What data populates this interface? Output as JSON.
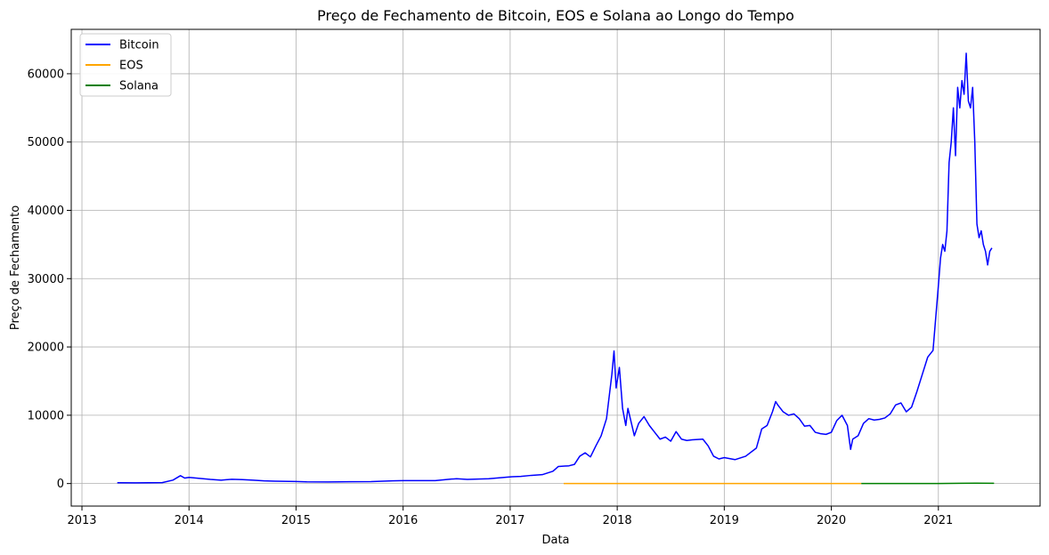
{
  "chart_data": {
    "type": "line",
    "title": "Preço de Fechamento de Bitcoin, EOS e Solana ao Longo do Tempo",
    "xlabel": "Data",
    "ylabel": "Preço de Fechamento",
    "xlim": [
      2012.9,
      2021.95
    ],
    "ylim": [
      -3300,
      66500
    ],
    "xticks": [
      2013,
      2014,
      2015,
      2016,
      2017,
      2018,
      2019,
      2020,
      2021
    ],
    "xtick_labels": [
      "2013",
      "2014",
      "2015",
      "2016",
      "2017",
      "2018",
      "2019",
      "2020",
      "2021"
    ],
    "yticks": [
      0,
      10000,
      20000,
      30000,
      40000,
      50000,
      60000
    ],
    "ytick_labels": [
      "0",
      "10000",
      "20000",
      "30000",
      "40000",
      "50000",
      "60000"
    ],
    "grid": true,
    "legend_position": "top-left",
    "series": [
      {
        "name": "Bitcoin",
        "color": "#0000ff",
        "x": [
          2013.33,
          2013.5,
          2013.75,
          2013.85,
          2013.92,
          2013.96,
          2014.0,
          2014.1,
          2014.2,
          2014.3,
          2014.4,
          2014.5,
          2014.6,
          2014.7,
          2014.8,
          2015.0,
          2015.1,
          2015.3,
          2015.5,
          2015.7,
          2015.9,
          2016.0,
          2016.3,
          2016.45,
          2016.5,
          2016.6,
          2016.8,
          2016.98,
          2017.02,
          2017.1,
          2017.2,
          2017.3,
          2017.4,
          2017.45,
          2017.55,
          2017.6,
          2017.65,
          2017.7,
          2017.75,
          2017.8,
          2017.85,
          2017.9,
          2017.95,
          2017.97,
          2017.99,
          2018.02,
          2018.05,
          2018.08,
          2018.1,
          2018.13,
          2018.16,
          2018.2,
          2018.25,
          2018.3,
          2018.35,
          2018.4,
          2018.45,
          2018.5,
          2018.55,
          2018.6,
          2018.65,
          2018.7,
          2018.8,
          2018.85,
          2018.9,
          2018.95,
          2019.0,
          2019.1,
          2019.2,
          2019.3,
          2019.35,
          2019.4,
          2019.45,
          2019.48,
          2019.5,
          2019.55,
          2019.6,
          2019.65,
          2019.7,
          2019.75,
          2019.8,
          2019.85,
          2019.9,
          2019.95,
          2020.0,
          2020.05,
          2020.1,
          2020.15,
          2020.18,
          2020.2,
          2020.25,
          2020.3,
          2020.35,
          2020.4,
          2020.45,
          2020.5,
          2020.55,
          2020.6,
          2020.65,
          2020.7,
          2020.75,
          2020.8,
          2020.85,
          2020.9,
          2020.95,
          2021.0,
          2021.02,
          2021.04,
          2021.06,
          2021.08,
          2021.1,
          2021.12,
          2021.14,
          2021.16,
          2021.18,
          2021.2,
          2021.22,
          2021.24,
          2021.26,
          2021.28,
          2021.3,
          2021.32,
          2021.34,
          2021.36,
          2021.38,
          2021.4,
          2021.42,
          2021.44,
          2021.46,
          2021.48,
          2021.5
        ],
        "values": [
          120,
          100,
          130,
          500,
          1150,
          800,
          900,
          750,
          600,
          500,
          620,
          580,
          500,
          400,
          350,
          300,
          250,
          240,
          260,
          280,
          400,
          430,
          420,
          650,
          700,
          610,
          700,
          950,
          1000,
          1050,
          1200,
          1300,
          1800,
          2500,
          2600,
          2800,
          4000,
          4500,
          3900,
          5500,
          7000,
          9500,
          16000,
          19400,
          14000,
          17000,
          11000,
          8500,
          11000,
          9000,
          7000,
          8800,
          9800,
          8500,
          7500,
          6500,
          6800,
          6200,
          7600,
          6500,
          6300,
          6400,
          6500,
          5500,
          4000,
          3600,
          3800,
          3500,
          4000,
          5200,
          8000,
          8500,
          10500,
          12000,
          11500,
          10500,
          10000,
          10200,
          9500,
          8400,
          8500,
          7500,
          7300,
          7200,
          7500,
          9200,
          10000,
          8500,
          5000,
          6500,
          7000,
          8800,
          9500,
          9300,
          9400,
          9600,
          10200,
          11500,
          11800,
          10500,
          11200,
          13500,
          16000,
          18500,
          19500,
          29000,
          33000,
          35000,
          34000,
          37000,
          47000,
          50000,
          55000,
          48000,
          58000,
          55000,
          59000,
          57000,
          63000,
          56000,
          55000,
          58000,
          50000,
          38000,
          36000,
          37000,
          35000,
          34000,
          32000,
          34000,
          34500
        ],
        "lw": 1.5
      },
      {
        "name": "EOS",
        "color": "#ffa500",
        "x": [
          2017.5,
          2018.0,
          2018.5,
          2019.0,
          2019.5,
          2020.0,
          2020.28
        ],
        "values": [
          2,
          10,
          8,
          3,
          4,
          3,
          3
        ],
        "lw": 1.5
      },
      {
        "name": "Solana",
        "color": "#008000",
        "x": [
          2020.28,
          2020.6,
          2020.9,
          2021.0,
          2021.2,
          2021.35,
          2021.52
        ],
        "values": [
          1,
          3,
          2,
          5,
          30,
          45,
          35
        ],
        "lw": 1.5
      }
    ]
  }
}
